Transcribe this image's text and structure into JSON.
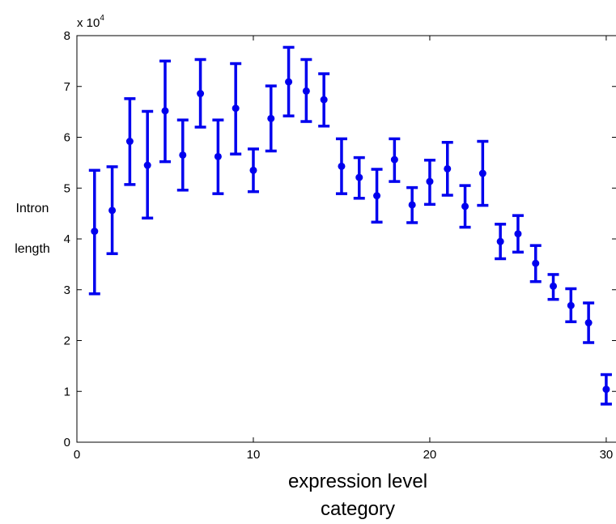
{
  "chart_data": {
    "type": "scatter",
    "style": "points with error bars",
    "title": "",
    "xlabel_lines": [
      "expression level",
      "category"
    ],
    "ylabel_lines": [
      "Intron",
      "length"
    ],
    "y_scale_label": "x 10",
    "y_scale_exponent": "4",
    "xlim": [
      0,
      30.6
    ],
    "ylim": [
      0,
      8
    ],
    "x_ticks": [
      0,
      10,
      20,
      30
    ],
    "y_ticks": [
      0,
      1,
      2,
      3,
      4,
      5,
      6,
      7,
      8
    ],
    "grid": false,
    "legend": "none",
    "colors": {
      "series": "#0000ee",
      "axes": "#000000"
    },
    "series": [
      {
        "x": [
          1,
          2,
          3,
          4,
          5,
          6,
          7,
          8,
          9,
          10,
          11,
          12,
          13,
          14,
          15,
          16,
          17,
          18,
          19,
          20,
          21,
          22,
          23,
          24,
          25,
          26,
          27,
          28,
          29,
          30
        ],
        "y": [
          4.15,
          4.56,
          5.92,
          5.45,
          6.52,
          5.65,
          6.86,
          5.62,
          6.57,
          5.35,
          6.37,
          7.09,
          6.91,
          6.74,
          5.43,
          5.21,
          4.85,
          5.56,
          4.67,
          5.13,
          5.38,
          4.64,
          5.29,
          3.95,
          4.1,
          3.52,
          3.07,
          2.69,
          2.35,
          1.04
        ],
        "y_low": [
          2.92,
          3.71,
          5.07,
          4.41,
          5.52,
          4.96,
          6.2,
          4.89,
          5.67,
          4.93,
          5.73,
          6.42,
          6.31,
          6.22,
          4.89,
          4.8,
          4.33,
          5.13,
          4.32,
          4.68,
          4.86,
          4.23,
          4.66,
          3.61,
          3.74,
          3.16,
          2.81,
          2.37,
          1.96,
          0.75
        ],
        "y_high": [
          5.35,
          5.42,
          6.76,
          6.51,
          7.5,
          6.34,
          7.53,
          6.34,
          7.45,
          5.77,
          7.01,
          7.77,
          7.53,
          7.25,
          5.97,
          5.6,
          5.37,
          5.97,
          5.01,
          5.55,
          5.9,
          5.05,
          5.92,
          4.29,
          4.46,
          3.87,
          3.3,
          3.02,
          2.74,
          1.33
        ]
      }
    ]
  }
}
